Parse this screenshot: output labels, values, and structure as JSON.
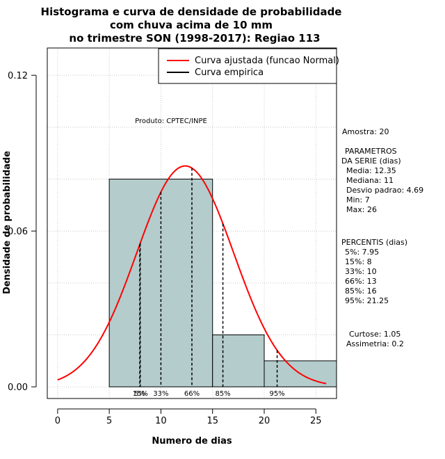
{
  "chart_data": {
    "type": "bar",
    "title": [
      "Histograma e curva de densidade de probabilidade",
      "com chuva acima de 10 mm",
      "no trimestre SON (1998-2017): Regiao 113"
    ],
    "xlabel": "Numero de dias",
    "ylabel": "Densidade de probabilidade",
    "xlim": [
      -1,
      27
    ],
    "ylim": [
      -0.0045,
      0.1305
    ],
    "x_ticks": [
      0,
      5,
      10,
      15,
      20,
      25
    ],
    "y_ticks": [
      "0.00",
      "0.06",
      "0.12"
    ],
    "y_tick_values": [
      0.0,
      0.06,
      0.12
    ],
    "grid": true,
    "histogram": {
      "bins": [
        {
          "from": 5,
          "to": 15,
          "density": 0.08
        },
        {
          "from": 15,
          "to": 20,
          "density": 0.02
        },
        {
          "from": 20,
          "to": 27,
          "density": 0.01
        }
      ],
      "color": "#b4cccc"
    },
    "normal_fit": {
      "mean": 12.35,
      "sd": 4.69,
      "x_from": 0,
      "x_to": 26,
      "color": "#ff0000"
    },
    "percentile_lines": [
      {
        "x": 7.95,
        "label": "5%"
      },
      {
        "x": 8,
        "label": "15%"
      },
      {
        "x": 10,
        "label": "33%"
      },
      {
        "x": 13,
        "label": "66%"
      },
      {
        "x": 16,
        "label": "85%"
      },
      {
        "x": 21.25,
        "label": "95%"
      }
    ],
    "legend": {
      "position": "top-right",
      "entries": [
        {
          "label": "Curva ajustada (funcao Normal)",
          "color": "#ff0000"
        },
        {
          "label": "Curva empirica",
          "color": "#000000"
        }
      ]
    },
    "annotation": "Produto: CPTEC/INPE"
  },
  "stats": {
    "amostra": "Amostra: 20",
    "params_header": [
      "PARAMETROS",
      "DA SERIE (dias)"
    ],
    "params": [
      "Media: 12.35",
      "Mediana: 11",
      "Desvio padrao: 4.69",
      "Min: 7",
      "Max: 26"
    ],
    "percentis_header": "PERCENTIS (dias)",
    "percentis": [
      "5%: 7.95",
      "15%: 8",
      "33%: 10",
      "66%: 13",
      "85%: 16",
      "95%: 21.25"
    ],
    "curtose": "Curtose: 1.05",
    "assimetria": "Assimetria: 0.2"
  }
}
